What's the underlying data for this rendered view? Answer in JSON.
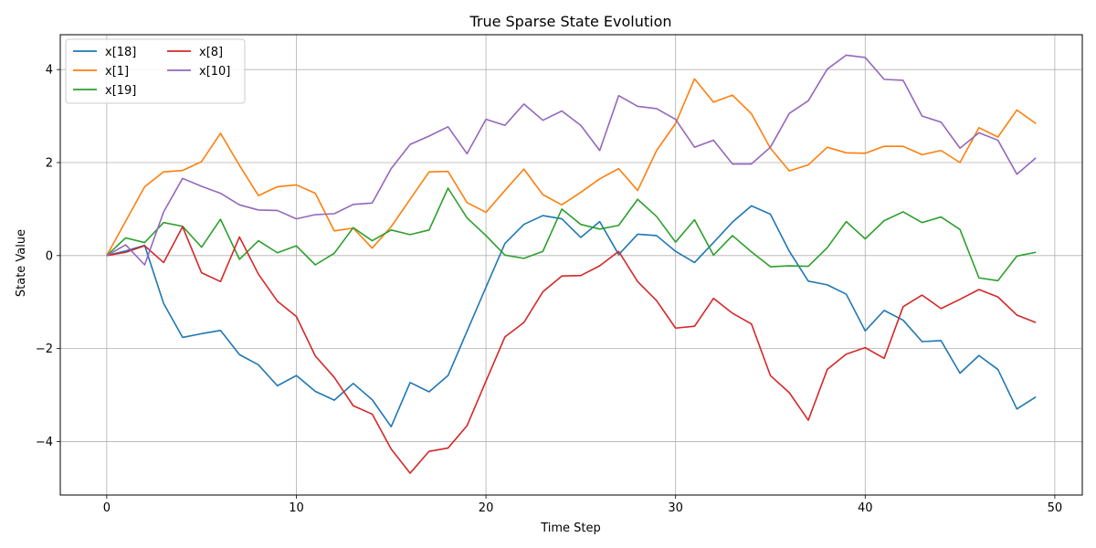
{
  "chart_data": {
    "type": "line",
    "title": "True Sparse State Evolution",
    "xlabel": "Time Step",
    "ylabel": "State Value",
    "xlim": [
      -2.45,
      51.45
    ],
    "ylim": [
      -5.15,
      4.75
    ],
    "xticks": [
      0,
      10,
      20,
      30,
      40,
      50
    ],
    "yticks": [
      -4,
      -2,
      0,
      2,
      4
    ],
    "grid": true,
    "legend_position": "top-left",
    "legend_columns": 2,
    "x": [
      0,
      1,
      2,
      3,
      4,
      5,
      6,
      7,
      8,
      9,
      10,
      11,
      12,
      13,
      14,
      15,
      16,
      17,
      18,
      19,
      20,
      21,
      22,
      23,
      24,
      25,
      26,
      27,
      28,
      29,
      30,
      31,
      32,
      33,
      34,
      35,
      36,
      37,
      38,
      39,
      40,
      41,
      42,
      43,
      44,
      45,
      46,
      47,
      48,
      49
    ],
    "series": [
      {
        "name": "x[18]",
        "color": "#1f77b4",
        "values": [
          0,
          0.1,
          0.22,
          -1.03,
          -1.76,
          -1.68,
          -1.61,
          -2.13,
          -2.35,
          -2.8,
          -2.58,
          -2.92,
          -3.11,
          -2.75,
          -3.1,
          -3.68,
          -2.73,
          -2.93,
          -2.58,
          -1.63,
          -0.68,
          0.26,
          0.67,
          0.86,
          0.79,
          0.39,
          0.73,
          0.02,
          0.46,
          0.43,
          0.09,
          -0.15,
          0.28,
          0.72,
          1.07,
          0.89,
          0.09,
          -0.55,
          -0.63,
          -0.83,
          -1.62,
          -1.18,
          -1.39,
          -1.85,
          -1.83,
          -2.53,
          -2.15,
          -2.45,
          -3.3,
          -3.04
        ]
      },
      {
        "name": "x[1]",
        "color": "#ff7f0e",
        "values": [
          0,
          0.74,
          1.48,
          1.8,
          1.83,
          2.02,
          2.63,
          1.94,
          1.29,
          1.48,
          1.52,
          1.34,
          0.53,
          0.59,
          0.16,
          0.62,
          1.21,
          1.8,
          1.81,
          1.14,
          0.93,
          1.4,
          1.86,
          1.31,
          1.09,
          1.36,
          1.65,
          1.87,
          1.4,
          2.26,
          2.84,
          3.8,
          3.3,
          3.45,
          3.05,
          2.31,
          1.82,
          1.95,
          2.33,
          2.21,
          2.2,
          2.35,
          2.35,
          2.17,
          2.26,
          2.0,
          2.75,
          2.55,
          3.13,
          2.84
        ]
      },
      {
        "name": "x[19]",
        "color": "#2ca02c",
        "values": [
          0,
          0.38,
          0.28,
          0.71,
          0.63,
          0.18,
          0.78,
          -0.08,
          0.32,
          0.06,
          0.21,
          -0.2,
          0.05,
          0.6,
          0.32,
          0.55,
          0.45,
          0.55,
          1.45,
          0.81,
          0.43,
          0.01,
          -0.06,
          0.09,
          1.0,
          0.67,
          0.57,
          0.65,
          1.21,
          0.84,
          0.29,
          0.77,
          0.01,
          0.43,
          0.08,
          -0.24,
          -0.22,
          -0.23,
          0.17,
          0.73,
          0.36,
          0.75,
          0.94,
          0.71,
          0.83,
          0.56,
          -0.48,
          -0.54,
          -0.01,
          0.07
        ]
      },
      {
        "name": "x[8]",
        "color": "#d62728",
        "values": [
          0,
          0.07,
          0.21,
          -0.15,
          0.62,
          -0.37,
          -0.56,
          0.4,
          -0.4,
          -0.98,
          -1.31,
          -2.16,
          -2.62,
          -3.23,
          -3.41,
          -4.16,
          -4.68,
          -4.21,
          -4.14,
          -3.66,
          -2.7,
          -1.75,
          -1.44,
          -0.78,
          -0.44,
          -0.43,
          -0.22,
          0.09,
          -0.56,
          -0.97,
          -1.56,
          -1.52,
          -0.92,
          -1.24,
          -1.47,
          -2.58,
          -2.95,
          -3.54,
          -2.45,
          -2.12,
          -1.98,
          -2.21,
          -1.1,
          -0.85,
          -1.14,
          -0.94,
          -0.73,
          -0.89,
          -1.28,
          -1.44
        ]
      },
      {
        "name": "x[10]",
        "color": "#9467bd",
        "values": [
          0,
          0.23,
          -0.2,
          0.94,
          1.66,
          1.49,
          1.34,
          1.09,
          0.98,
          0.97,
          0.79,
          0.88,
          0.9,
          1.1,
          1.13,
          1.87,
          2.39,
          2.57,
          2.77,
          2.19,
          2.93,
          2.8,
          3.26,
          2.91,
          3.11,
          2.8,
          2.26,
          3.44,
          3.21,
          3.16,
          2.93,
          2.33,
          2.48,
          1.97,
          1.97,
          2.33,
          3.06,
          3.33,
          4.01,
          4.31,
          4.26,
          3.79,
          3.77,
          3.0,
          2.87,
          2.31,
          2.64,
          2.48,
          1.75,
          2.1
        ]
      }
    ]
  }
}
